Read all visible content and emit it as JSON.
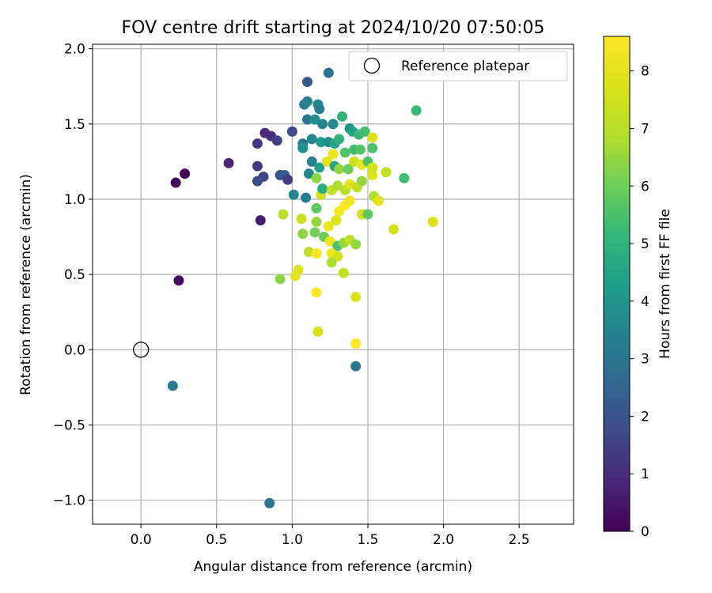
{
  "chart_data": {
    "type": "scatter",
    "title": "FOV centre drift starting at 2024/10/20 07:50:05",
    "xlabel": "Angular distance from reference (arcmin)",
    "ylabel": "Rotation from reference (arcmin)",
    "xlim": [
      -0.32,
      2.86
    ],
    "ylim": [
      -1.16,
      2.03
    ],
    "xticks": [
      0.0,
      0.5,
      1.0,
      1.5,
      2.0,
      2.5
    ],
    "xtick_labels": [
      "0.0",
      "0.5",
      "1.0",
      "1.5",
      "2.0",
      "2.5"
    ],
    "yticks": [
      -1.0,
      -0.5,
      0.0,
      0.5,
      1.0,
      1.5,
      2.0
    ],
    "ytick_labels": [
      "−1.0",
      "−0.5",
      "0.0",
      "0.5",
      "1.0",
      "1.5",
      "2.0"
    ],
    "grid": true,
    "legend": {
      "placement": "top-right",
      "entries": [
        "Reference platepar"
      ]
    },
    "reference_point": {
      "x": 0.0,
      "y": 0.0
    },
    "colorbar": {
      "label": "Hours from first FF file",
      "range": [
        0,
        8.6
      ],
      "ticks": [
        0,
        1,
        2,
        3,
        4,
        5,
        6,
        7,
        8
      ],
      "tick_labels": [
        "0",
        "1",
        "2",
        "3",
        "4",
        "5",
        "6",
        "7",
        "8"
      ],
      "colormap": "viridis"
    },
    "points": [
      {
        "x": 0.23,
        "y": 1.11,
        "h": 0.1
      },
      {
        "x": 0.29,
        "y": 1.17,
        "h": 0.1
      },
      {
        "x": 0.25,
        "y": 0.46,
        "h": 0.2
      },
      {
        "x": 0.58,
        "y": 1.24,
        "h": 0.8
      },
      {
        "x": 0.77,
        "y": 1.37,
        "h": 1.2
      },
      {
        "x": 0.82,
        "y": 1.44,
        "h": 0.9
      },
      {
        "x": 0.86,
        "y": 1.42,
        "h": 1.0
      },
      {
        "x": 0.9,
        "y": 1.39,
        "h": 1.5
      },
      {
        "x": 0.77,
        "y": 1.22,
        "h": 1.3
      },
      {
        "x": 0.81,
        "y": 1.15,
        "h": 1.6
      },
      {
        "x": 0.77,
        "y": 1.12,
        "h": 1.8
      },
      {
        "x": 0.79,
        "y": 0.86,
        "h": 0.6
      },
      {
        "x": 0.92,
        "y": 1.16,
        "h": 2.0
      },
      {
        "x": 0.95,
        "y": 1.16,
        "h": 2.2
      },
      {
        "x": 0.97,
        "y": 1.13,
        "h": 1.4
      },
      {
        "x": 1.0,
        "y": 1.45,
        "h": 1.8
      },
      {
        "x": 1.1,
        "y": 1.78,
        "h": 2.1
      },
      {
        "x": 1.24,
        "y": 1.84,
        "h": 3.0
      },
      {
        "x": 1.08,
        "y": 1.63,
        "h": 3.3
      },
      {
        "x": 1.1,
        "y": 1.65,
        "h": 3.4
      },
      {
        "x": 1.17,
        "y": 1.63,
        "h": 3.6
      },
      {
        "x": 1.18,
        "y": 1.6,
        "h": 3.2
      },
      {
        "x": 1.82,
        "y": 1.59,
        "h": 5.2
      },
      {
        "x": 1.1,
        "y": 1.53,
        "h": 3.0
      },
      {
        "x": 1.15,
        "y": 1.53,
        "h": 3.8
      },
      {
        "x": 1.2,
        "y": 1.5,
        "h": 3.5
      },
      {
        "x": 1.27,
        "y": 1.5,
        "h": 3.7
      },
      {
        "x": 1.33,
        "y": 1.55,
        "h": 5.0
      },
      {
        "x": 1.38,
        "y": 1.47,
        "h": 4.0
      },
      {
        "x": 1.4,
        "y": 1.45,
        "h": 4.4
      },
      {
        "x": 1.44,
        "y": 1.43,
        "h": 5.2
      },
      {
        "x": 1.48,
        "y": 1.45,
        "h": 5.4
      },
      {
        "x": 1.07,
        "y": 1.37,
        "h": 3.1
      },
      {
        "x": 1.07,
        "y": 1.34,
        "h": 3.9
      },
      {
        "x": 1.13,
        "y": 1.4,
        "h": 3.6
      },
      {
        "x": 1.19,
        "y": 1.38,
        "h": 4.2
      },
      {
        "x": 1.24,
        "y": 1.38,
        "h": 3.8
      },
      {
        "x": 1.28,
        "y": 1.37,
        "h": 4.5
      },
      {
        "x": 1.31,
        "y": 1.4,
        "h": 5.0
      },
      {
        "x": 1.35,
        "y": 1.31,
        "h": 5.6
      },
      {
        "x": 1.41,
        "y": 1.33,
        "h": 5.3
      },
      {
        "x": 1.45,
        "y": 1.33,
        "h": 5.6
      },
      {
        "x": 1.53,
        "y": 1.34,
        "h": 5.5
      },
      {
        "x": 1.53,
        "y": 1.41,
        "h": 7.8
      },
      {
        "x": 1.13,
        "y": 1.25,
        "h": 3.4
      },
      {
        "x": 1.11,
        "y": 1.17,
        "h": 3.6
      },
      {
        "x": 1.18,
        "y": 1.21,
        "h": 4.3
      },
      {
        "x": 1.23,
        "y": 1.25,
        "h": 8.0
      },
      {
        "x": 1.27,
        "y": 1.3,
        "h": 8.2
      },
      {
        "x": 1.28,
        "y": 1.22,
        "h": 4.6
      },
      {
        "x": 1.31,
        "y": 1.2,
        "h": 6.5
      },
      {
        "x": 1.37,
        "y": 1.2,
        "h": 6.0
      },
      {
        "x": 1.41,
        "y": 1.25,
        "h": 7.5
      },
      {
        "x": 1.46,
        "y": 1.23,
        "h": 8.1
      },
      {
        "x": 1.5,
        "y": 1.25,
        "h": 5.5
      },
      {
        "x": 1.53,
        "y": 1.21,
        "h": 7.6
      },
      {
        "x": 1.53,
        "y": 1.16,
        "h": 7.8
      },
      {
        "x": 1.62,
        "y": 1.18,
        "h": 7.2
      },
      {
        "x": 1.74,
        "y": 1.14,
        "h": 5.3
      },
      {
        "x": 1.01,
        "y": 1.03,
        "h": 3.5
      },
      {
        "x": 1.09,
        "y": 1.01,
        "h": 3.3
      },
      {
        "x": 1.16,
        "y": 1.14,
        "h": 6.4
      },
      {
        "x": 1.19,
        "y": 1.03,
        "h": 7.5
      },
      {
        "x": 1.2,
        "y": 1.07,
        "h": 4.8
      },
      {
        "x": 1.26,
        "y": 1.06,
        "h": 7.2
      },
      {
        "x": 1.3,
        "y": 1.09,
        "h": 6.8
      },
      {
        "x": 1.35,
        "y": 1.06,
        "h": 7.0
      },
      {
        "x": 1.38,
        "y": 1.1,
        "h": 8.0
      },
      {
        "x": 1.43,
        "y": 1.08,
        "h": 7.2
      },
      {
        "x": 1.46,
        "y": 1.12,
        "h": 6.5
      },
      {
        "x": 1.54,
        "y": 1.02,
        "h": 6.8
      },
      {
        "x": 1.57,
        "y": 0.99,
        "h": 8.0
      },
      {
        "x": 0.94,
        "y": 0.9,
        "h": 7.0
      },
      {
        "x": 1.06,
        "y": 0.87,
        "h": 7.4
      },
      {
        "x": 1.16,
        "y": 0.94,
        "h": 5.8
      },
      {
        "x": 1.16,
        "y": 0.85,
        "h": 6.5
      },
      {
        "x": 1.24,
        "y": 0.82,
        "h": 8.2
      },
      {
        "x": 1.29,
        "y": 0.86,
        "h": 7.8
      },
      {
        "x": 1.31,
        "y": 0.92,
        "h": 8.4
      },
      {
        "x": 1.35,
        "y": 0.96,
        "h": 8.6
      },
      {
        "x": 1.38,
        "y": 0.99,
        "h": 8.3
      },
      {
        "x": 1.46,
        "y": 0.9,
        "h": 7.6
      },
      {
        "x": 1.5,
        "y": 0.9,
        "h": 5.8
      },
      {
        "x": 1.67,
        "y": 0.8,
        "h": 7.6
      },
      {
        "x": 1.93,
        "y": 0.85,
        "h": 7.8
      },
      {
        "x": 1.07,
        "y": 0.77,
        "h": 6.4
      },
      {
        "x": 1.15,
        "y": 0.78,
        "h": 6.1
      },
      {
        "x": 1.21,
        "y": 0.75,
        "h": 6.0
      },
      {
        "x": 1.25,
        "y": 0.72,
        "h": 8.3
      },
      {
        "x": 1.3,
        "y": 0.69,
        "h": 5.5
      },
      {
        "x": 1.34,
        "y": 0.71,
        "h": 6.5
      },
      {
        "x": 1.38,
        "y": 0.73,
        "h": 7.2
      },
      {
        "x": 1.42,
        "y": 0.7,
        "h": 6.5
      },
      {
        "x": 1.11,
        "y": 0.65,
        "h": 7.0
      },
      {
        "x": 1.16,
        "y": 0.64,
        "h": 8.6
      },
      {
        "x": 1.26,
        "y": 0.64,
        "h": 8.3
      },
      {
        "x": 1.3,
        "y": 0.62,
        "h": 7.6
      },
      {
        "x": 1.26,
        "y": 0.58,
        "h": 6.8
      },
      {
        "x": 1.04,
        "y": 0.53,
        "h": 7.8
      },
      {
        "x": 1.02,
        "y": 0.49,
        "h": 8.0
      },
      {
        "x": 1.34,
        "y": 0.51,
        "h": 7.2
      },
      {
        "x": 0.92,
        "y": 0.47,
        "h": 6.4
      },
      {
        "x": 1.16,
        "y": 0.38,
        "h": 8.6
      },
      {
        "x": 1.42,
        "y": 0.35,
        "h": 7.8
      },
      {
        "x": 1.17,
        "y": 0.12,
        "h": 7.8
      },
      {
        "x": 1.42,
        "y": 0.04,
        "h": 8.6
      },
      {
        "x": 1.42,
        "y": -0.11,
        "h": 3.0
      },
      {
        "x": 0.21,
        "y": -0.24,
        "h": 3.2
      },
      {
        "x": 0.85,
        "y": -1.02,
        "h": 3.0
      }
    ]
  }
}
